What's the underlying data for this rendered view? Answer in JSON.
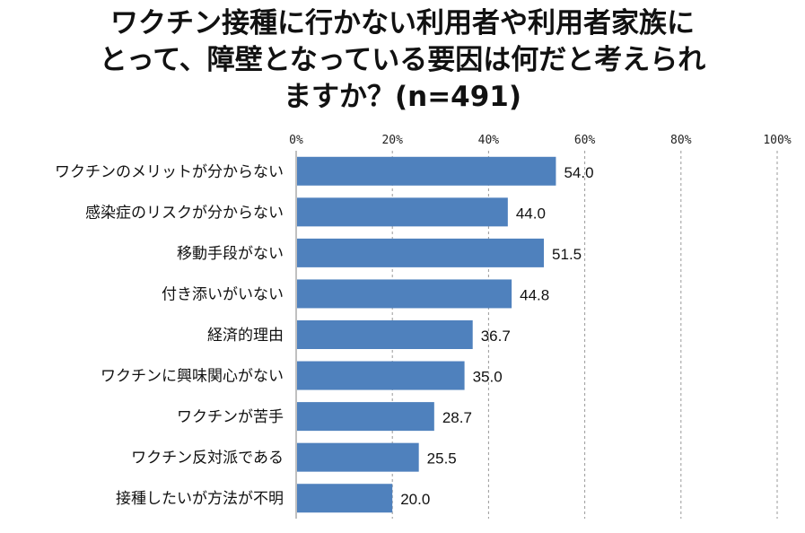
{
  "chart_data": {
    "type": "bar",
    "orientation": "horizontal",
    "title_lines": [
      "ワクチン接種に行かない利用者や利用者家族に",
      "とって、障壁となっている要因は何だと考えられ",
      "ますか？(n=491)"
    ],
    "categories": [
      "ワクチンのメリットが分からない",
      "感染症のリスクが分からない",
      "移動手段がない",
      "付き添いがいない",
      "経済的理由",
      "ワクチンに興味関心がない",
      "ワクチンが苦手",
      "ワクチン反対派である",
      "接種したいが方法が不明"
    ],
    "values": [
      54.0,
      44.0,
      51.5,
      44.8,
      36.7,
      35.0,
      28.7,
      25.5,
      20.0
    ],
    "value_labels": [
      "54.0",
      "44.0",
      "51.5",
      "44.8",
      "36.7",
      "35.0",
      "28.7",
      "25.5",
      "20.0"
    ],
    "xlim": [
      0,
      100
    ],
    "x_ticks": [
      "0%",
      "20%",
      "40%",
      "60%",
      "80%",
      "100%"
    ],
    "x_tick_values": [
      0,
      20,
      40,
      60,
      80,
      100
    ],
    "x_axis_position": "top",
    "grid": true,
    "bar_color": "#4f81bd",
    "xlabel": "",
    "ylabel": ""
  }
}
